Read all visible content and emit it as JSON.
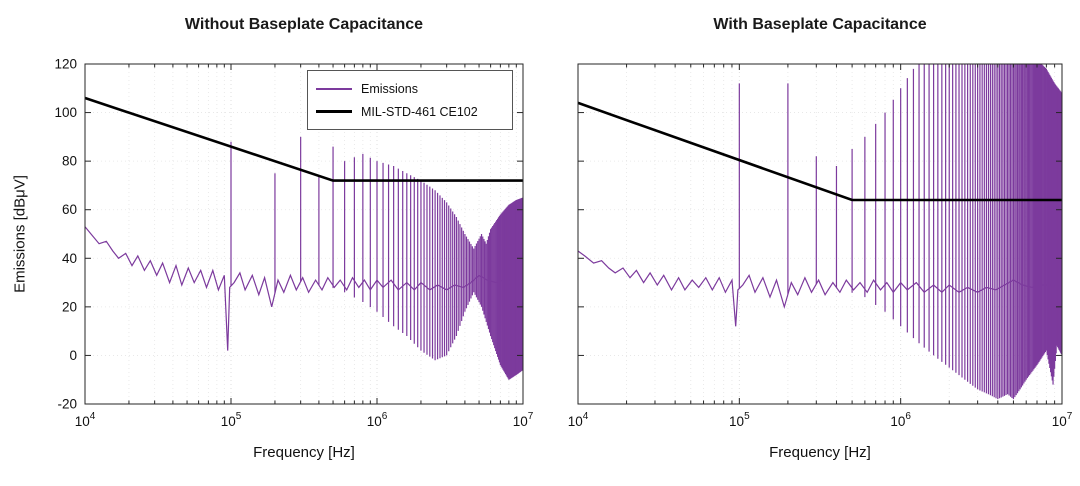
{
  "figure": {
    "background": "#ffffff",
    "emissions_color": "#7C3A9D",
    "limit_color": "#000000",
    "grid_color": "#dcdcdc",
    "minor_grid_color": "#e5e5e5",
    "axis_color": "#262626"
  },
  "chart_data": [
    {
      "type": "line",
      "title": "Without Baseplate Capacitance",
      "xlabel": "Frequency [Hz]",
      "ylabel": "Emissions [dBμV]",
      "xscale": "log",
      "xlim": [
        10000.0,
        10000000.0
      ],
      "ylim": [
        -20,
        120
      ],
      "yticks": [
        -20,
        0,
        20,
        40,
        60,
        80,
        100,
        120
      ],
      "xtick_exponents": [
        4,
        5,
        6,
        7
      ],
      "show_ytick_labels": true,
      "grid": true,
      "legend": {
        "position": "north",
        "entries": [
          {
            "label": "Emissions",
            "series": "emissions"
          },
          {
            "label": "MIL-STD-461 CE102",
            "series": "limit"
          }
        ]
      },
      "series": {
        "limit": {
          "name": "MIL-STD-461 CE102",
          "points": [
            [
              10000.0,
              106
            ],
            [
              500000.0,
              72
            ],
            [
              10000000.0,
              72
            ]
          ]
        },
        "emissions": {
          "name": "Emissions",
          "baseline": [
            [
              10000.0,
              53
            ],
            [
              11000.0,
              50
            ],
            [
              12500.0,
              46
            ],
            [
              14000.0,
              47
            ],
            [
              15500.0,
              43
            ],
            [
              17000.0,
              40
            ],
            [
              19000.0,
              42
            ],
            [
              21000.0,
              37
            ],
            [
              23000.0,
              41
            ],
            [
              25500.0,
              35
            ],
            [
              28000.0,
              39
            ],
            [
              31000.0,
              33
            ],
            [
              34000.0,
              38
            ],
            [
              38000.0,
              30
            ],
            [
              42000.0,
              37
            ],
            [
              46000.0,
              29
            ],
            [
              51000.0,
              36
            ],
            [
              56000.0,
              30
            ],
            [
              62000.0,
              35
            ],
            [
              68000.0,
              28
            ],
            [
              75000.0,
              35
            ],
            [
              82000.0,
              27
            ],
            [
              90000.0,
              33
            ],
            [
              95000.0,
              2
            ],
            [
              98000.0,
              28
            ],
            [
              105000.0,
              30
            ],
            [
              115000.0,
              34
            ],
            [
              125000.0,
              27
            ],
            [
              140000.0,
              33
            ],
            [
              155000.0,
              25
            ],
            [
              170000.0,
              32
            ],
            [
              190000.0,
              20
            ],
            [
              210000.0,
              31
            ],
            [
              230000.0,
              26
            ],
            [
              255000.0,
              33
            ],
            [
              280000.0,
              27
            ],
            [
              310000.0,
              32
            ],
            [
              340000.0,
              26
            ],
            [
              380000.0,
              31
            ],
            [
              420000.0,
              27
            ],
            [
              460000.0,
              32
            ],
            [
              510000.0,
              28
            ],
            [
              560000.0,
              31
            ],
            [
              620000.0,
              27
            ],
            [
              680000.0,
              32
            ],
            [
              750000.0,
              28
            ],
            [
              820000.0,
              31
            ],
            [
              900000.0,
              27
            ],
            [
              1000000.0,
              31
            ],
            [
              1100000.0,
              28
            ],
            [
              1250000.0,
              31
            ],
            [
              1400000.0,
              27
            ],
            [
              1600000.0,
              30
            ],
            [
              1800000.0,
              27
            ],
            [
              2000000.0,
              30
            ],
            [
              2300000.0,
              27
            ],
            [
              2600000.0,
              29
            ],
            [
              3000000.0,
              27
            ],
            [
              3400000.0,
              29
            ],
            [
              3900000.0,
              28
            ],
            [
              4400000.0,
              30
            ],
            [
              5000000.0,
              33
            ],
            [
              5700000.0,
              31
            ],
            [
              6500000.0,
              30
            ],
            [
              7400000.0,
              31
            ],
            [
              8400000.0,
              31
            ],
            [
              9500000.0,
              30
            ],
            [
              10000000.0,
              30
            ]
          ],
          "harmonics": {
            "fundamental": 100000.0,
            "count": 100,
            "upper_envelope": [
              [
                100000.0,
                88
              ],
              [
                200000.0,
                75
              ],
              [
                300000.0,
                90
              ],
              [
                400000.0,
                74
              ],
              [
                500000.0,
                86
              ],
              [
                600000.0,
                80
              ],
              [
                800000.0,
                83
              ],
              [
                1000000.0,
                80
              ],
              [
                1300000.0,
                78
              ],
              [
                1600000.0,
                75
              ],
              [
                2000000.0,
                72
              ],
              [
                2500000.0,
                68
              ],
              [
                3000000.0,
                63
              ],
              [
                3500000.0,
                57
              ],
              [
                4000000.0,
                50
              ],
              [
                4600000.0,
                44
              ],
              [
                5200000.0,
                50
              ],
              [
                5600000.0,
                46
              ],
              [
                6000000.0,
                52
              ],
              [
                7000000.0,
                58
              ],
              [
                8000000.0,
                62
              ],
              [
                9000000.0,
                64
              ],
              [
                10000000.0,
                65
              ]
            ],
            "lower_envelope": [
              [
                400000.0,
                30
              ],
              [
                600000.0,
                26
              ],
              [
                800000.0,
                22
              ],
              [
                1000000.0,
                18
              ],
              [
                1300000.0,
                12
              ],
              [
                1600000.0,
                8
              ],
              [
                2000000.0,
                2
              ],
              [
                2500000.0,
                -2
              ],
              [
                3000000.0,
                0
              ],
              [
                3500000.0,
                8
              ],
              [
                4000000.0,
                18
              ],
              [
                4600000.0,
                26
              ],
              [
                5200000.0,
                20
              ],
              [
                6000000.0,
                8
              ],
              [
                7000000.0,
                -4
              ],
              [
                8000000.0,
                -10
              ],
              [
                9000000.0,
                -8
              ],
              [
                10000000.0,
                -6
              ]
            ]
          }
        }
      }
    },
    {
      "type": "line",
      "title": "With Baseplate Capacitance",
      "xlabel": "Frequency [Hz]",
      "ylabel": "",
      "xscale": "log",
      "xlim": [
        10000.0,
        10000000.0
      ],
      "ylim": [
        -20,
        120
      ],
      "yticks": [
        -20,
        0,
        20,
        40,
        60,
        80,
        100,
        120
      ],
      "xtick_exponents": [
        4,
        5,
        6,
        7
      ],
      "show_ytick_labels": false,
      "grid": true,
      "series": {
        "limit": {
          "name": "MIL-STD-461 CE102",
          "points": [
            [
              10000.0,
              104
            ],
            [
              500000.0,
              64
            ],
            [
              10000000.0,
              64
            ]
          ]
        },
        "emissions": {
          "name": "Emissions",
          "baseline": [
            [
              10000.0,
              43
            ],
            [
              11000.0,
              41
            ],
            [
              12500.0,
              38
            ],
            [
              14000.0,
              39
            ],
            [
              15500.0,
              36
            ],
            [
              17000.0,
              34
            ],
            [
              19000.0,
              36
            ],
            [
              21000.0,
              32
            ],
            [
              23000.0,
              35
            ],
            [
              25500.0,
              30
            ],
            [
              28000.0,
              34
            ],
            [
              31000.0,
              29
            ],
            [
              34000.0,
              33
            ],
            [
              38000.0,
              27
            ],
            [
              42000.0,
              32
            ],
            [
              46000.0,
              27
            ],
            [
              51000.0,
              31
            ],
            [
              56000.0,
              28
            ],
            [
              62000.0,
              32
            ],
            [
              68000.0,
              27
            ],
            [
              75000.0,
              32
            ],
            [
              82000.0,
              26
            ],
            [
              90000.0,
              31
            ],
            [
              95000.0,
              12
            ],
            [
              98000.0,
              27
            ],
            [
              105000.0,
              29
            ],
            [
              115000.0,
              33
            ],
            [
              125000.0,
              26
            ],
            [
              140000.0,
              32
            ],
            [
              155000.0,
              24
            ],
            [
              170000.0,
              31
            ],
            [
              190000.0,
              20
            ],
            [
              210000.0,
              30
            ],
            [
              230000.0,
              25
            ],
            [
              255000.0,
              32
            ],
            [
              280000.0,
              26
            ],
            [
              310000.0,
              31
            ],
            [
              340000.0,
              25
            ],
            [
              380000.0,
              30
            ],
            [
              420000.0,
              26
            ],
            [
              460000.0,
              31
            ],
            [
              510000.0,
              27
            ],
            [
              560000.0,
              30
            ],
            [
              620000.0,
              26
            ],
            [
              680000.0,
              31
            ],
            [
              750000.0,
              27
            ],
            [
              820000.0,
              30
            ],
            [
              900000.0,
              26
            ],
            [
              1000000.0,
              30
            ],
            [
              1100000.0,
              27
            ],
            [
              1250000.0,
              30
            ],
            [
              1400000.0,
              26
            ],
            [
              1600000.0,
              29
            ],
            [
              1800000.0,
              26
            ],
            [
              2000000.0,
              29
            ],
            [
              2300000.0,
              26
            ],
            [
              2600000.0,
              28
            ],
            [
              3000000.0,
              26
            ],
            [
              3400000.0,
              28
            ],
            [
              3900000.0,
              27
            ],
            [
              4400000.0,
              29
            ],
            [
              5000000.0,
              31
            ],
            [
              5700000.0,
              29
            ],
            [
              6500000.0,
              28
            ],
            [
              7400000.0,
              29
            ],
            [
              8400000.0,
              29
            ],
            [
              9500000.0,
              28
            ],
            [
              10000000.0,
              28
            ]
          ],
          "harmonics": {
            "fundamental": 100000.0,
            "count": 100,
            "upper_envelope": [
              [
                100000.0,
                112
              ],
              [
                200000.0,
                112
              ],
              [
                300000.0,
                82
              ],
              [
                400000.0,
                78
              ],
              [
                500000.0,
                85
              ],
              [
                600000.0,
                90
              ],
              [
                800000.0,
                100
              ],
              [
                1000000.0,
                110
              ],
              [
                1200000.0,
                118
              ],
              [
                1500000.0,
                124
              ],
              [
                2000000.0,
                128
              ],
              [
                3000000.0,
                130
              ],
              [
                4000000.0,
                129
              ],
              [
                5000000.0,
                127
              ],
              [
                6000000.0,
                125
              ],
              [
                7000000.0,
                122
              ],
              [
                8000000.0,
                118
              ],
              [
                9000000.0,
                112
              ],
              [
                10000000.0,
                108
              ]
            ],
            "lower_envelope": [
              [
                400000.0,
                28
              ],
              [
                600000.0,
                24
              ],
              [
                800000.0,
                18
              ],
              [
                1000000.0,
                12
              ],
              [
                1300000.0,
                5
              ],
              [
                1600000.0,
                0
              ],
              [
                2000000.0,
                -5
              ],
              [
                2500000.0,
                -10
              ],
              [
                3000000.0,
                -14
              ],
              [
                3500000.0,
                -16
              ],
              [
                4000000.0,
                -18
              ],
              [
                4600000.0,
                -16
              ],
              [
                5000000.0,
                -18
              ],
              [
                5500000.0,
                -14
              ],
              [
                6000000.0,
                -10
              ],
              [
                7000000.0,
                -4
              ],
              [
                8000000.0,
                2
              ],
              [
                8800000.0,
                -12
              ],
              [
                9300000.0,
                4
              ],
              [
                10000000.0,
                0
              ]
            ]
          }
        }
      }
    }
  ]
}
